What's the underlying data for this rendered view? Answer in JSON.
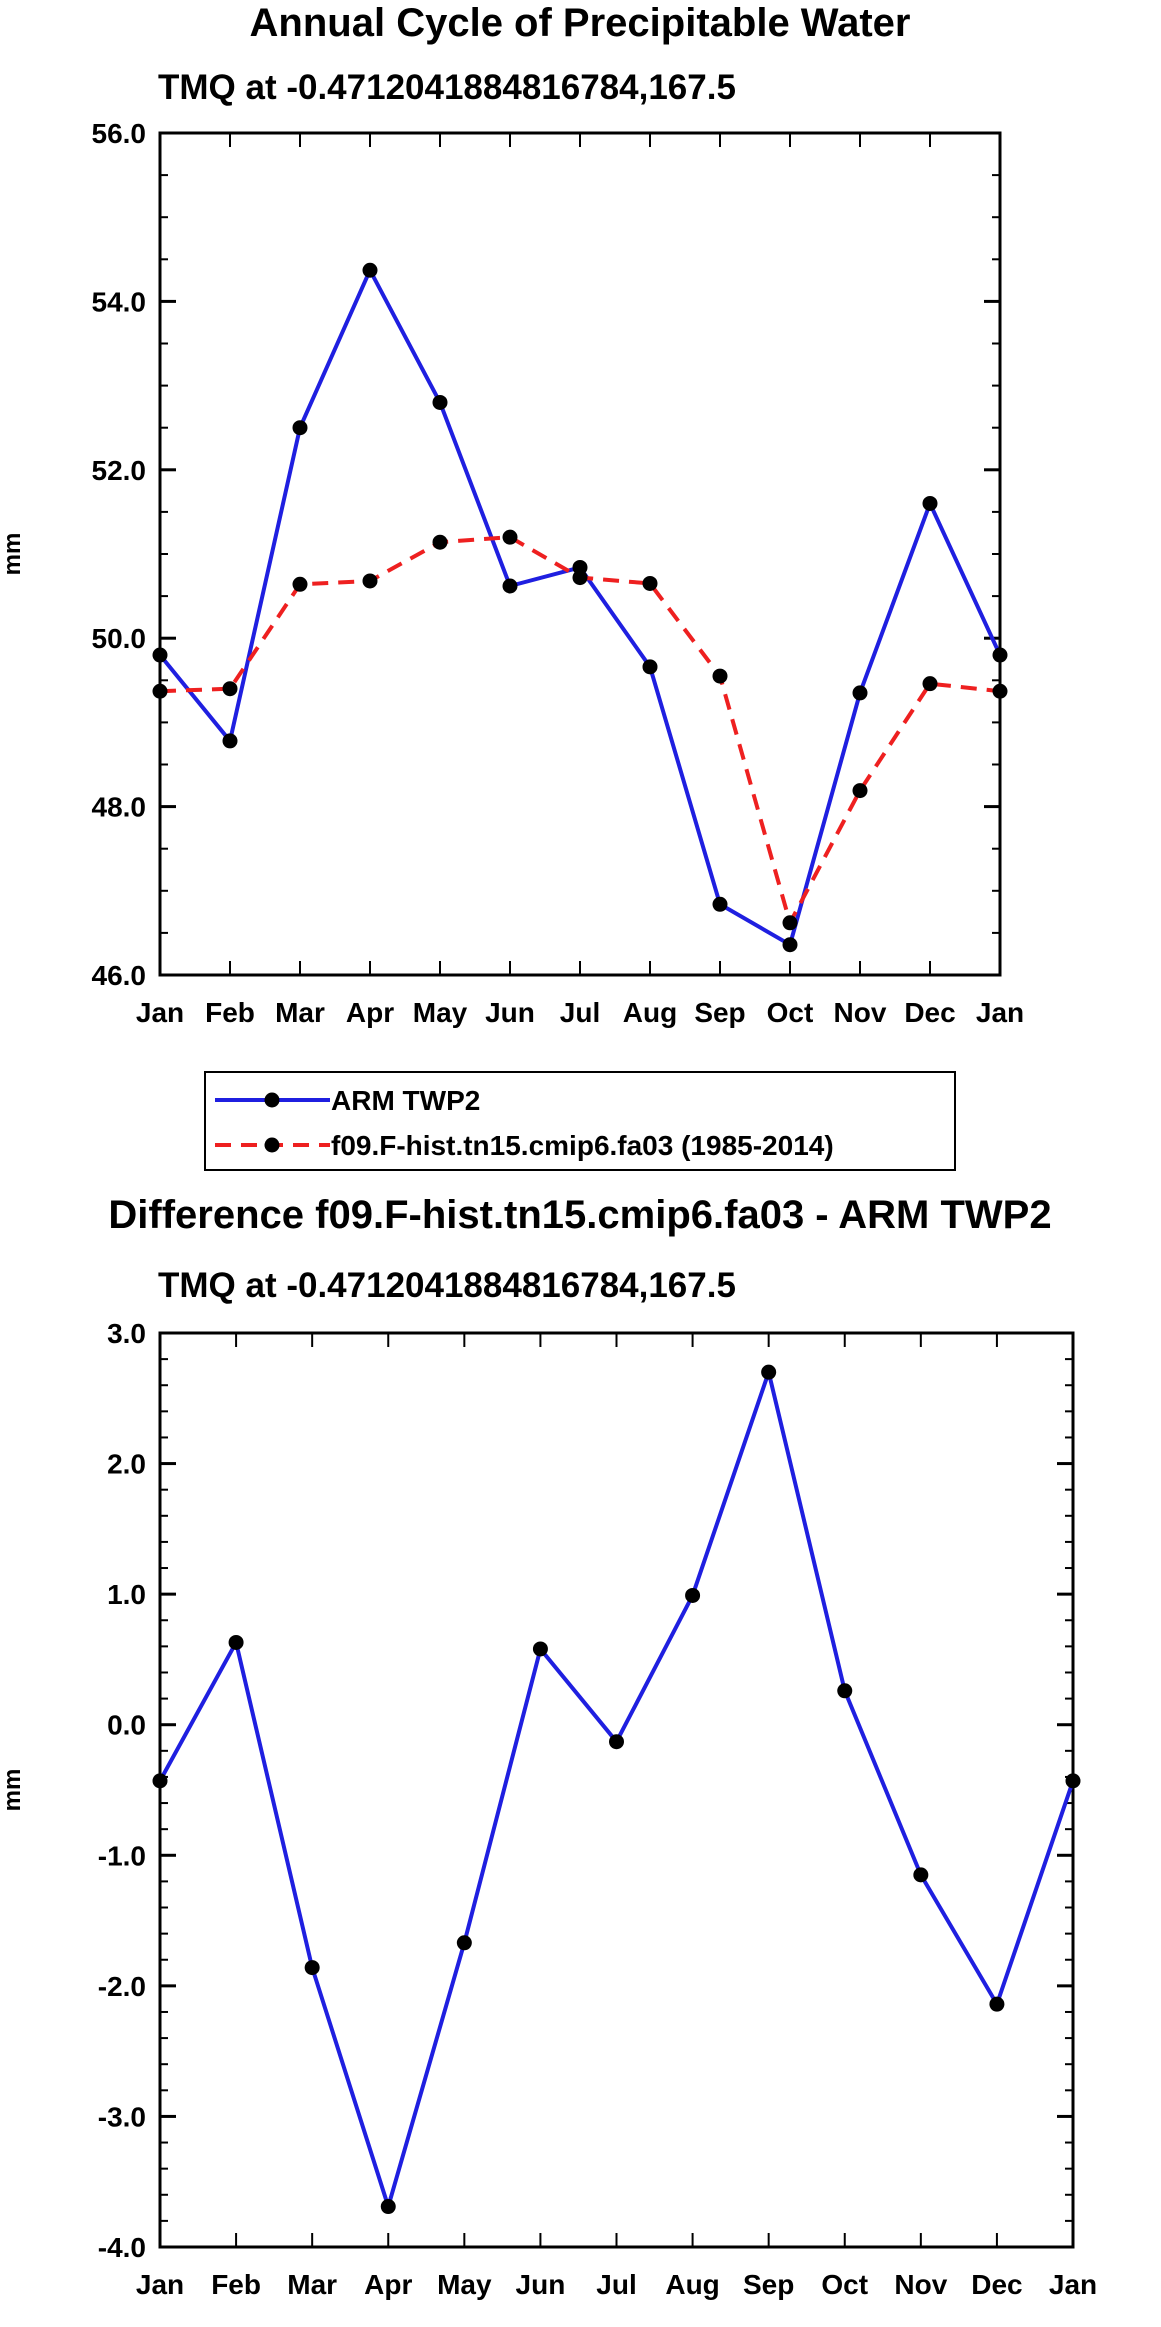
{
  "chart_data": [
    {
      "type": "line",
      "title": "Annual Cycle of Precipitable Water",
      "subtitle": "TMQ at -0.4712041884816784,167.5",
      "xlabel": "",
      "ylabel": "mm",
      "categories": [
        "Jan",
        "Feb",
        "Mar",
        "Apr",
        "May",
        "Jun",
        "Jul",
        "Aug",
        "Sep",
        "Oct",
        "Nov",
        "Dec",
        "Jan"
      ],
      "ylim": [
        46.0,
        56.0
      ],
      "yticks": [
        "46.0",
        "48.0",
        "50.0",
        "52.0",
        "54.0",
        "56.0"
      ],
      "series": [
        {
          "name": "ARM TWP2",
          "color": "#1f1fe0",
          "dash": "solid",
          "values": [
            49.8,
            48.78,
            52.5,
            54.37,
            52.8,
            50.62,
            50.84,
            49.66,
            46.84,
            46.36,
            49.35,
            51.6,
            49.8
          ]
        },
        {
          "name": "f09.F-hist.tn15.cmip6.fa03 (1985-2014)",
          "color": "#ee2020",
          "dash": "dashed",
          "values": [
            49.37,
            49.4,
            50.64,
            50.68,
            51.14,
            51.2,
            50.72,
            50.65,
            49.55,
            46.62,
            48.19,
            49.46,
            49.37
          ]
        }
      ],
      "legend": {
        "placement": "below",
        "entries": [
          "ARM TWP2",
          "f09.F-hist.tn15.cmip6.fa03 (1985-2014)"
        ]
      }
    },
    {
      "type": "line",
      "title": "Difference f09.F-hist.tn15.cmip6.fa03 - ARM TWP2",
      "subtitle": "TMQ at -0.4712041884816784,167.5",
      "xlabel": "",
      "ylabel": "mm",
      "categories": [
        "Jan",
        "Feb",
        "Mar",
        "Apr",
        "May",
        "Jun",
        "Jul",
        "Aug",
        "Sep",
        "Oct",
        "Nov",
        "Dec",
        "Jan"
      ],
      "ylim": [
        -4.0,
        3.0
      ],
      "yticks": [
        "-4.0",
        "-3.0",
        "-2.0",
        "-1.0",
        "0.0",
        "1.0",
        "2.0",
        "3.0"
      ],
      "series": [
        {
          "name": "Difference",
          "color": "#1f1fe0",
          "dash": "solid",
          "values": [
            -0.43,
            0.63,
            -1.86,
            -3.69,
            -1.67,
            0.58,
            -0.13,
            0.99,
            2.7,
            0.26,
            -1.15,
            -2.14,
            -0.43
          ]
        }
      ]
    }
  ]
}
